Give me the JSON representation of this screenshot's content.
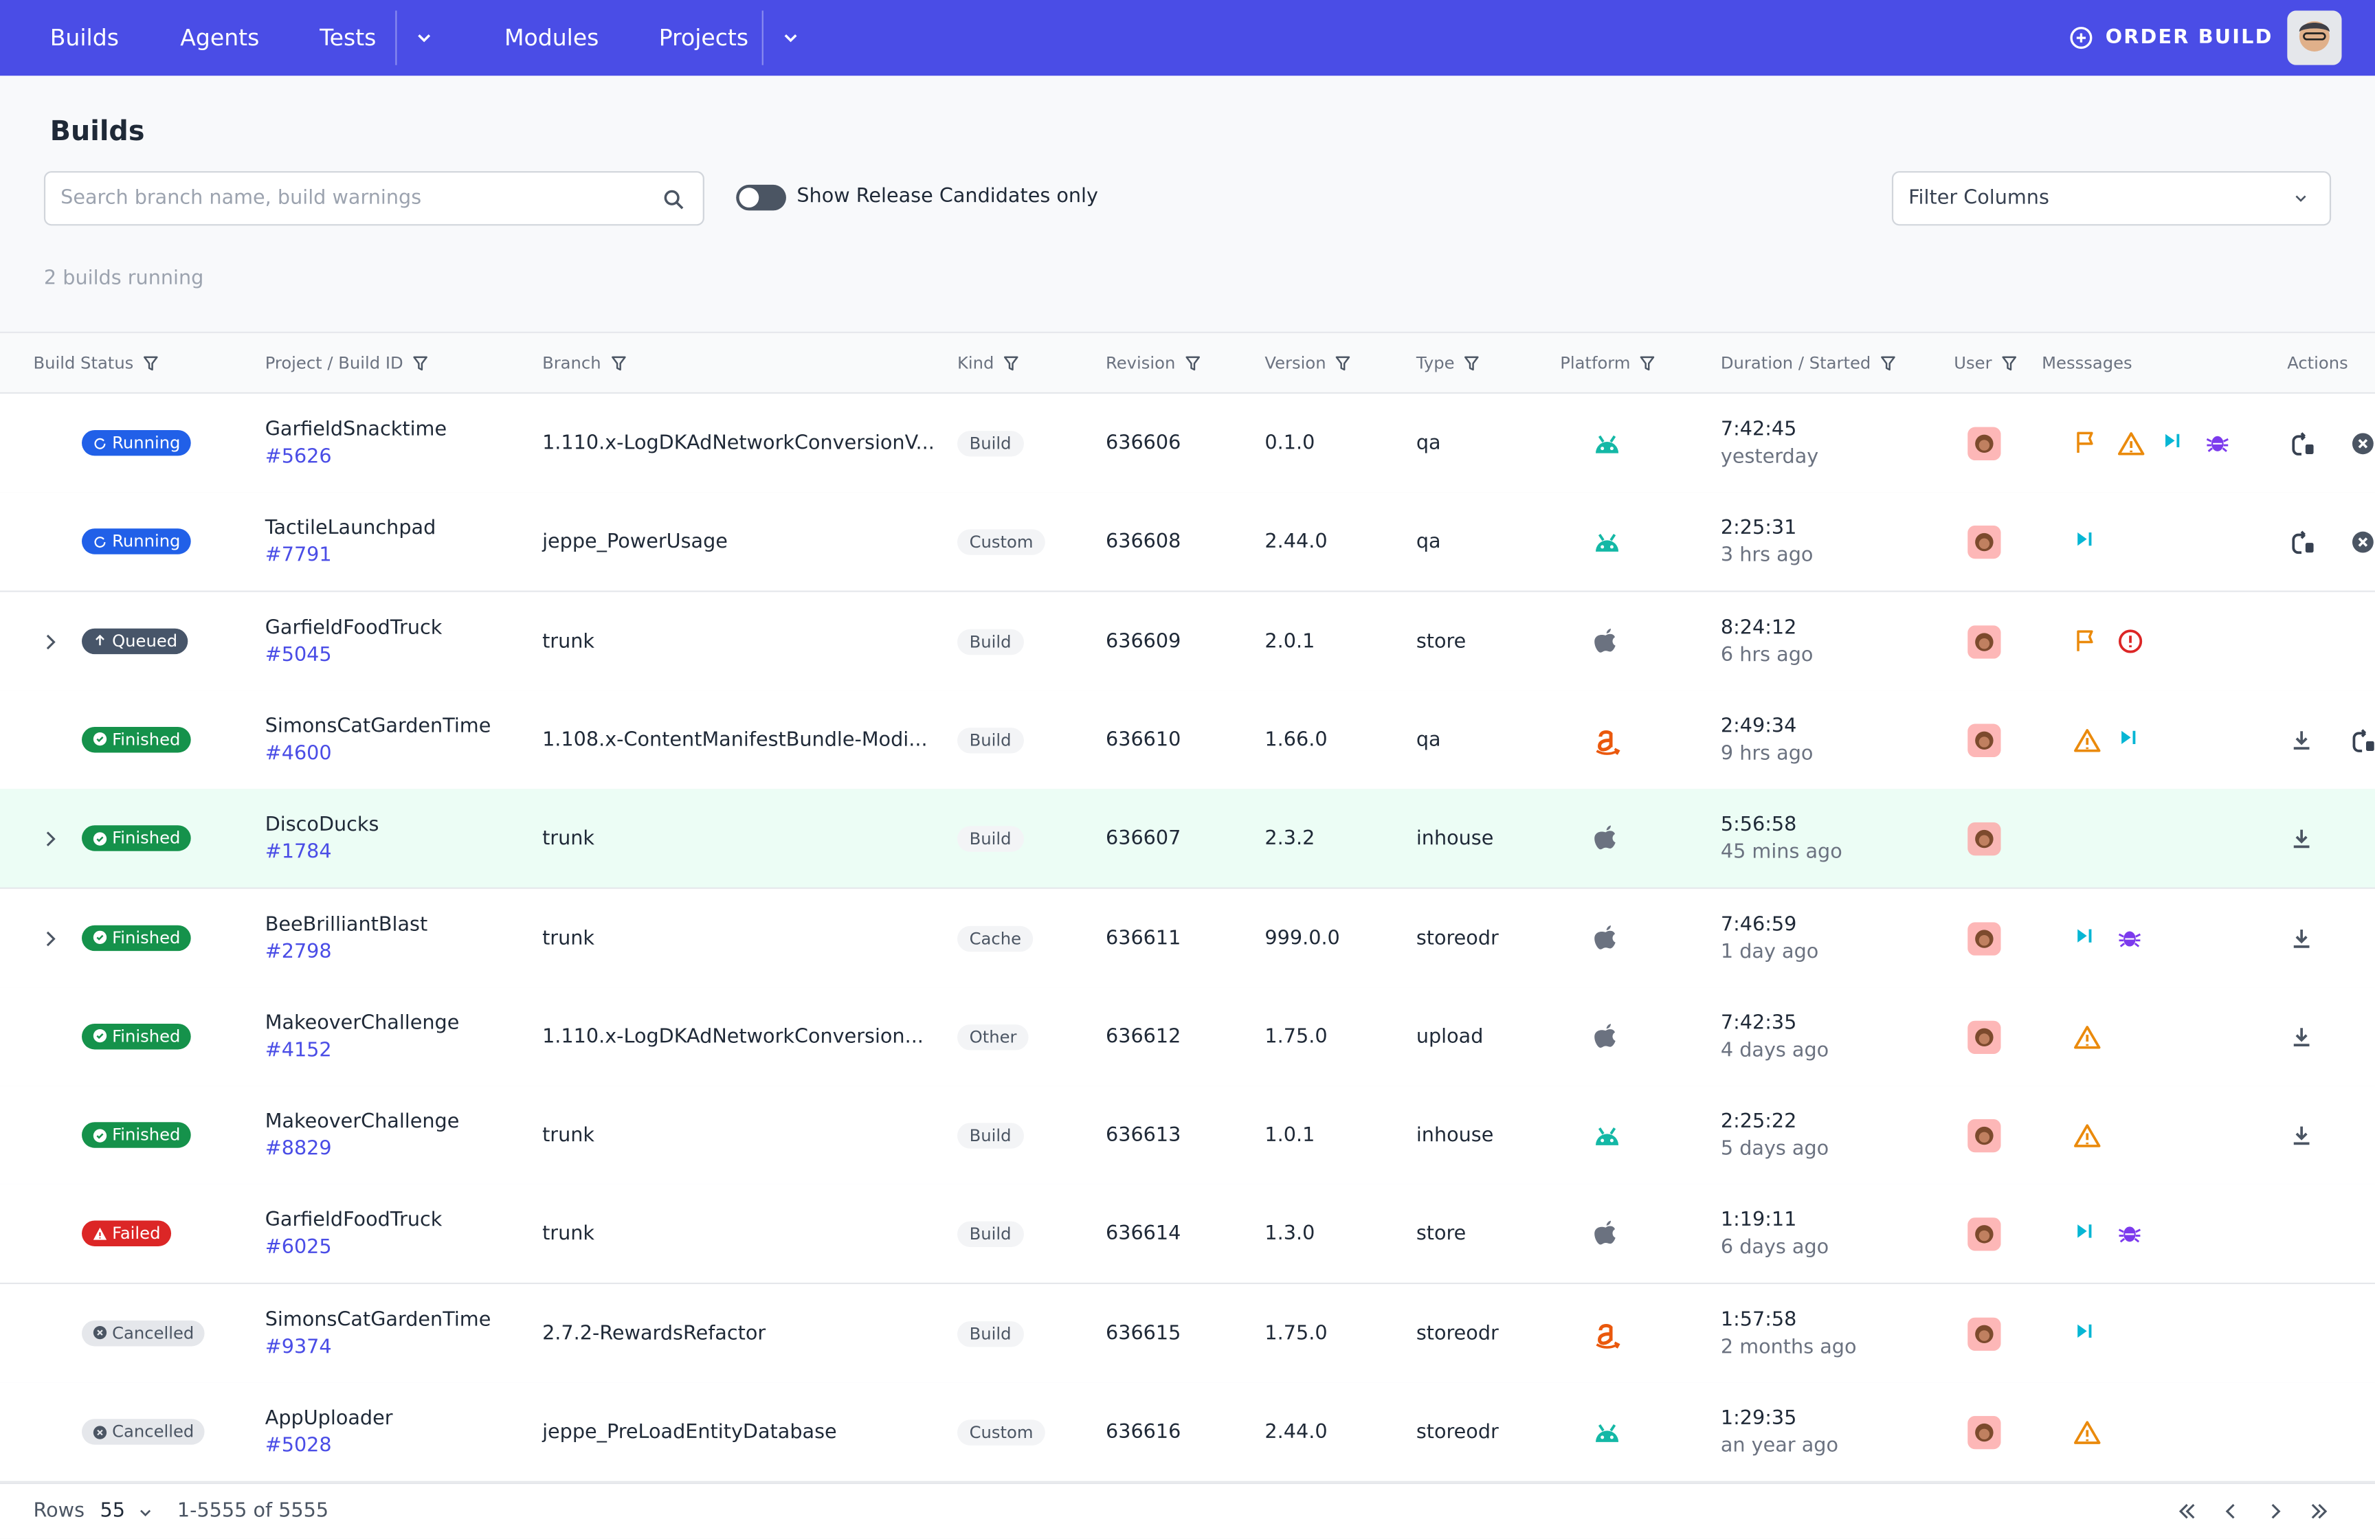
{
  "nav": {
    "items": [
      "Builds",
      "Agents",
      "Tests",
      "Modules",
      "Projects"
    ],
    "order_build": "ORDER BUILD"
  },
  "page": {
    "title": "Builds",
    "search_placeholder": "Search branch name, build warnings",
    "toggle_label": "Show Release Candidates only",
    "filter_columns": "Filter Columns",
    "running_count": "2 builds running"
  },
  "table": {
    "columns": [
      "Build Status",
      "Project / Build ID",
      "Branch",
      "Kind",
      "Revision",
      "Version",
      "Type",
      "Platform",
      "Duration / Started",
      "User",
      "Messsages",
      "Actions"
    ],
    "rows": [
      {
        "status": "Running",
        "project": "GarfieldSnacktime",
        "build_id": "#5626",
        "branch": "1.110.x-LogDKAdNetworkConversionV...",
        "kind": "Build",
        "revision": 636606,
        "version": "0.1.0",
        "type": "qa",
        "duration": "7:42:45",
        "started": "yesterday"
      },
      {
        "status": "Running",
        "project": "TactileLaunchpad",
        "build_id": "#7791",
        "branch": "jeppe_PowerUsage",
        "kind": "Custom",
        "revision": 636608,
        "version": "2.44.0",
        "type": "qa",
        "duration": "2:25:31",
        "started": "3 hrs ago"
      },
      {
        "status": "Queued",
        "project": "GarfieldFoodTruck",
        "build_id": "#5045",
        "branch": "trunk",
        "kind": "Build",
        "revision": 636609,
        "version": "2.0.1",
        "type": "store",
        "duration": "8:24:12",
        "started": "6 hrs ago"
      },
      {
        "status": "Finished",
        "project": "SimonsCatGardenTime",
        "build_id": "#4600",
        "branch": "1.108.x-ContentManifestBundle-Modi...",
        "kind": "Build",
        "revision": 636610,
        "version": "1.66.0",
        "type": "qa",
        "duration": "2:49:34",
        "started": "9 hrs ago"
      },
      {
        "status": "Finished",
        "project": "DiscoDucks",
        "build_id": "#1784",
        "branch": "trunk",
        "kind": "Build",
        "revision": 636607,
        "version": "2.3.2",
        "type": "inhouse",
        "duration": "5:56:58",
        "started": "45 mins ago"
      },
      {
        "status": "Finished",
        "project": "BeeBrilliantBlast",
        "build_id": "#2798",
        "branch": "trunk",
        "kind": "Cache",
        "revision": 636611,
        "version": "999.0.0",
        "type": "storeodr",
        "duration": "7:46:59",
        "started": "1 day ago"
      },
      {
        "status": "Finished",
        "project": "MakeoverChallenge",
        "build_id": "#4152",
        "branch": "1.110.x-LogDKAdNetworkConversion...",
        "kind": "Other",
        "revision": 636612,
        "version": "1.75.0",
        "type": "upload",
        "duration": "7:42:35",
        "started": "4 days ago"
      },
      {
        "status": "Finished",
        "project": "MakeoverChallenge",
        "build_id": "#8829",
        "branch": "trunk",
        "kind": "Build",
        "revision": 636613,
        "version": "1.0.1",
        "type": "inhouse",
        "duration": "2:25:22",
        "started": "5 days ago"
      },
      {
        "status": "Failed",
        "project": "GarfieldFoodTruck",
        "build_id": "#6025",
        "branch": "trunk",
        "kind": "Build",
        "revision": 636614,
        "version": "1.3.0",
        "type": "store",
        "duration": "1:19:11",
        "started": "6 days ago"
      },
      {
        "status": "Cancelled",
        "project": "SimonsCatGardenTime",
        "build_id": "#9374",
        "branch": "2.7.2-RewardsRefactor",
        "kind": "Build",
        "revision": 636615,
        "version": "1.75.0",
        "type": "storeodr",
        "duration": "1:57:58",
        "started": "2 months ago"
      },
      {
        "status": "Cancelled",
        "project": "AppUploader",
        "build_id": "#5028",
        "branch": "jeppe_PreLoadEntityDatabase",
        "kind": "Custom",
        "revision": 636616,
        "version": "2.44.0",
        "type": "storeodr",
        "duration": "1:29:35",
        "started": "an year ago"
      }
    ]
  },
  "footer": {
    "rows_label": "Rows",
    "rows_per_page": 55,
    "range": "1-5555 of 5555"
  }
}
